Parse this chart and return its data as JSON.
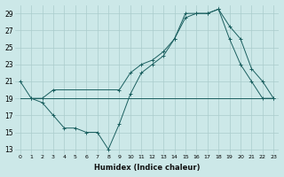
{
  "xlabel": "Humidex (Indice chaleur)",
  "bg_color": "#cce8e8",
  "line_color": "#1a5f5f",
  "grid_color": "#aacccc",
  "xlim": [
    -0.5,
    23.5
  ],
  "ylim": [
    12.5,
    30
  ],
  "xticks": [
    0,
    1,
    2,
    3,
    4,
    5,
    6,
    7,
    8,
    9,
    10,
    11,
    12,
    13,
    14,
    15,
    16,
    17,
    18,
    19,
    20,
    21,
    22,
    23
  ],
  "yticks": [
    13,
    15,
    17,
    19,
    21,
    23,
    25,
    27,
    29
  ],
  "line1_x": [
    0,
    1,
    2,
    3,
    4,
    5,
    6,
    7,
    8,
    9,
    10,
    11,
    12,
    13,
    14,
    15,
    16,
    17,
    18,
    19,
    20,
    21,
    22,
    23
  ],
  "line1_y": [
    19,
    19,
    19,
    19,
    19,
    19,
    19,
    19,
    19,
    19,
    19,
    19,
    19,
    19,
    19,
    19,
    19,
    19,
    19,
    19,
    19,
    19,
    19,
    19
  ],
  "line2_x": [
    0,
    1,
    2,
    3,
    4,
    5,
    6,
    7,
    8,
    9,
    10,
    11,
    12,
    13,
    14,
    15,
    16,
    17,
    18,
    19,
    20,
    21,
    22,
    23
  ],
  "line2_y": [
    21,
    19,
    18.5,
    17,
    15.5,
    15.5,
    15,
    15,
    13,
    16,
    19.5,
    22,
    23,
    24,
    26,
    29,
    29,
    29,
    29.5,
    26,
    23,
    21,
    19,
    19
  ],
  "line3_x": [
    1,
    2,
    3,
    9,
    10,
    11,
    12,
    13,
    14,
    15,
    16,
    17,
    18,
    19,
    20,
    21,
    22,
    23
  ],
  "line3_y": [
    19,
    19,
    20,
    20,
    22,
    23,
    23.5,
    24.5,
    26,
    28.5,
    29,
    29,
    29.5,
    27.5,
    26,
    22.5,
    21,
    19
  ]
}
